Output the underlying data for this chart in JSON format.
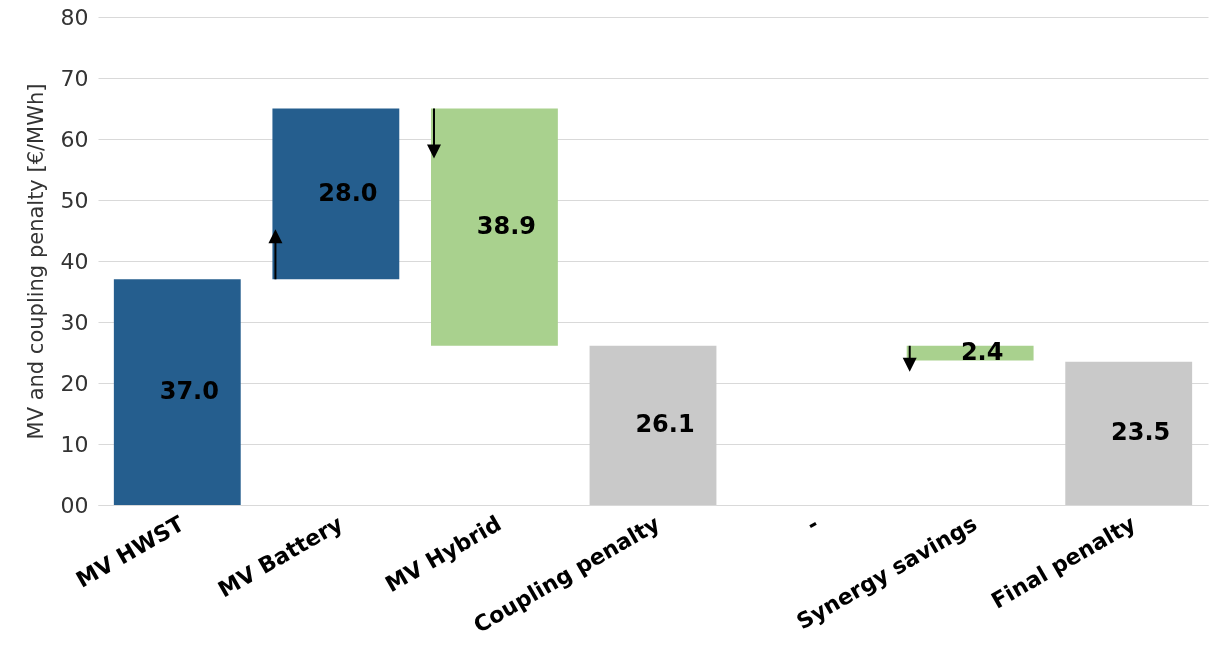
{
  "chart_data": {
    "type": "bar",
    "ylabel": "MV and coupling penalty [€/MWh]",
    "categories": [
      "MV HWST",
      "MV Battery",
      "MV Hybrid",
      "Coupling penalty",
      "-",
      "Synergy savings",
      "Final penalty"
    ],
    "values": [
      37.0,
      28.0,
      38.9,
      26.1,
      null,
      2.4,
      23.5
    ],
    "base": [
      0,
      37.0,
      26.1,
      0,
      null,
      23.7,
      0
    ],
    "colors": [
      "#255e8e",
      "#255e8e",
      "#a9d18e",
      "#c9c9c9",
      null,
      "#a9d18e",
      "#c9c9c9"
    ],
    "value_labels": [
      "37.0",
      "28.0",
      "38.9",
      "26.1",
      null,
      "2.4",
      "23.5"
    ],
    "ylim": [
      0,
      80
    ],
    "yticks": [
      {
        "value": 0,
        "label": "00"
      },
      10,
      20,
      30,
      40,
      50,
      60,
      70,
      80
    ],
    "grid": "y"
  }
}
